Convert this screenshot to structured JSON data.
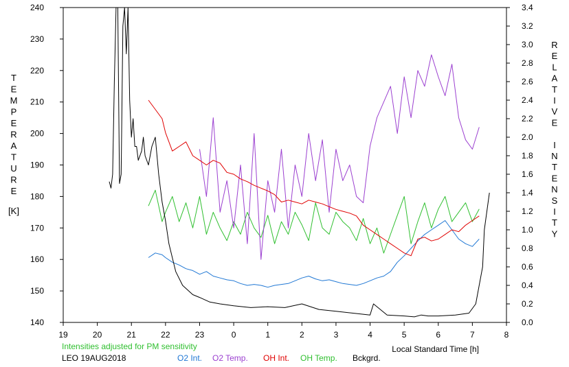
{
  "chart_data": {
    "type": "line",
    "footer_note": "Intensities adjusted for PM sensitivity",
    "station_date": "LEO 19AUG2018",
    "xlabel": "Local Standard Time [h]",
    "x_ticks": [
      "19",
      "20",
      "21",
      "22",
      "23",
      "0",
      "1",
      "2",
      "3",
      "4",
      "5",
      "6",
      "7",
      "8"
    ],
    "ylabel_left": "TEMPERATURE",
    "ylabel_left_unit": "[K]",
    "ylabel_right": "RELATIVE INTENSITY",
    "ylim_left": [
      140,
      240
    ],
    "y_ticks_left": [
      "140",
      "150",
      "160",
      "170",
      "180",
      "190",
      "200",
      "210",
      "220",
      "230",
      "240"
    ],
    "ylim_right": [
      0.0,
      3.4
    ],
    "y_ticks_right": [
      "0.0",
      "0.2",
      "0.4",
      "0.6",
      "0.8",
      "1.0",
      "1.2",
      "1.4",
      "1.6",
      "1.8",
      "2.0",
      "2.2",
      "2.4",
      "2.6",
      "2.8",
      "3.0",
      "3.2",
      "3.4"
    ],
    "colors": {
      "o2_int": "#1f77d4",
      "o2_temp": "#9b3fd0",
      "oh_int": "#e00000",
      "oh_temp": "#2fbf2f",
      "bckgrd": "#000000"
    },
    "series": [
      {
        "key": "bckgrd",
        "name": "Bckgrd.",
        "axis": "right",
        "x": [
          20.35,
          20.4,
          20.45,
          20.5,
          20.55,
          20.6,
          20.65,
          20.7,
          20.75,
          20.8,
          20.85,
          20.9,
          20.95,
          21.0,
          21.05,
          21.1,
          21.15,
          21.2,
          21.3,
          21.35,
          21.4,
          21.5,
          21.6,
          21.7,
          21.8,
          21.9,
          22.0,
          22.1,
          22.3,
          22.5,
          22.8,
          23.0,
          23.3,
          23.6,
          24.0,
          24.5,
          25.0,
          25.5,
          26.0,
          26.5,
          27.0,
          27.5,
          28.0,
          28.1,
          28.5,
          29.0,
          29.3,
          29.5,
          29.7,
          30.0,
          30.5,
          30.9,
          31.1,
          31.3,
          31.35,
          31.5
        ],
        "y": [
          1.52,
          1.45,
          1.6,
          2.6,
          3.5,
          4.0,
          1.5,
          1.6,
          3.2,
          3.6,
          2.9,
          3.5,
          2.4,
          2.0,
          2.2,
          1.9,
          1.9,
          1.75,
          1.85,
          2.0,
          1.8,
          1.7,
          1.9,
          2.0,
          1.6,
          1.3,
          1.1,
          0.85,
          0.55,
          0.4,
          0.3,
          0.27,
          0.22,
          0.2,
          0.18,
          0.16,
          0.17,
          0.16,
          0.2,
          0.14,
          0.12,
          0.1,
          0.08,
          0.2,
          0.08,
          0.07,
          0.06,
          0.08,
          0.07,
          0.07,
          0.08,
          0.1,
          0.2,
          0.6,
          1.0,
          1.4
        ]
      },
      {
        "key": "oh_int",
        "name": "OH Int.",
        "axis": "right",
        "x": [
          21.5,
          21.7,
          21.9,
          22.0,
          22.2,
          22.4,
          22.6,
          22.8,
          23.0,
          23.2,
          23.4,
          23.6,
          23.8,
          24.0,
          24.2,
          24.4,
          24.6,
          24.8,
          25.0,
          25.2,
          25.4,
          25.6,
          25.8,
          26.0,
          26.2,
          26.4,
          26.6,
          26.8,
          27.0,
          27.2,
          27.4,
          27.6,
          27.8,
          28.0,
          28.2,
          28.4,
          28.6,
          28.8,
          29.0,
          29.2,
          29.4,
          29.6,
          29.8,
          30.0,
          30.2,
          30.4,
          30.6,
          30.8,
          31.0,
          31.2
        ],
        "y": [
          2.4,
          2.3,
          2.2,
          2.05,
          1.85,
          1.9,
          1.95,
          1.8,
          1.75,
          1.7,
          1.75,
          1.72,
          1.62,
          1.6,
          1.55,
          1.52,
          1.48,
          1.45,
          1.42,
          1.38,
          1.3,
          1.32,
          1.3,
          1.28,
          1.32,
          1.3,
          1.28,
          1.25,
          1.22,
          1.2,
          1.18,
          1.15,
          1.05,
          1.0,
          0.95,
          0.9,
          0.85,
          0.8,
          0.75,
          0.72,
          0.9,
          0.92,
          0.88,
          0.9,
          0.95,
          1.0,
          0.98,
          1.05,
          1.1,
          1.15
        ]
      },
      {
        "key": "o2_int",
        "name": "O2 Int.",
        "axis": "right",
        "x": [
          21.5,
          21.7,
          21.9,
          22.0,
          22.2,
          22.4,
          22.6,
          22.8,
          23.0,
          23.2,
          23.4,
          23.6,
          23.8,
          24.0,
          24.2,
          24.4,
          24.6,
          24.8,
          25.0,
          25.2,
          25.4,
          25.6,
          25.8,
          26.0,
          26.2,
          26.4,
          26.6,
          26.8,
          27.0,
          27.2,
          27.4,
          27.6,
          27.8,
          28.0,
          28.2,
          28.4,
          28.6,
          28.8,
          29.0,
          29.2,
          29.4,
          29.6,
          29.8,
          30.0,
          30.2,
          30.4,
          30.6,
          30.8,
          31.0,
          31.2
        ],
        "y": [
          0.7,
          0.75,
          0.73,
          0.7,
          0.65,
          0.62,
          0.58,
          0.56,
          0.52,
          0.55,
          0.5,
          0.48,
          0.46,
          0.45,
          0.42,
          0.4,
          0.41,
          0.4,
          0.38,
          0.4,
          0.41,
          0.42,
          0.45,
          0.48,
          0.5,
          0.47,
          0.45,
          0.46,
          0.44,
          0.42,
          0.41,
          0.4,
          0.42,
          0.45,
          0.48,
          0.5,
          0.55,
          0.65,
          0.72,
          0.8,
          0.88,
          0.95,
          1.0,
          1.05,
          1.1,
          1.0,
          0.9,
          0.85,
          0.82,
          0.9
        ]
      },
      {
        "key": "oh_temp",
        "name": "OH Temp.",
        "axis": "left",
        "x": [
          21.5,
          21.7,
          21.9,
          22.0,
          22.2,
          22.4,
          22.6,
          22.8,
          23.0,
          23.2,
          23.4,
          23.6,
          23.8,
          24.0,
          24.2,
          24.4,
          24.6,
          24.8,
          25.0,
          25.2,
          25.4,
          25.6,
          25.8,
          26.0,
          26.2,
          26.4,
          26.6,
          26.8,
          27.0,
          27.2,
          27.4,
          27.6,
          27.8,
          28.0,
          28.2,
          28.4,
          28.6,
          28.8,
          29.0,
          29.2,
          29.4,
          29.6,
          29.8,
          30.0,
          30.2,
          30.4,
          30.6,
          30.8,
          31.0,
          31.2
        ],
        "y": [
          177,
          182,
          172,
          175,
          180,
          172,
          178,
          170,
          180,
          168,
          175,
          170,
          166,
          172,
          168,
          175,
          170,
          167,
          174,
          165,
          172,
          168,
          175,
          171,
          166,
          178,
          170,
          168,
          175,
          172,
          170,
          166,
          173,
          165,
          170,
          162,
          168,
          174,
          180,
          165,
          172,
          178,
          170,
          176,
          180,
          172,
          175,
          178,
          172,
          176
        ]
      },
      {
        "key": "o2_temp",
        "name": "O2 Temp.",
        "axis": "left",
        "x": [
          23.0,
          23.2,
          23.4,
          23.6,
          23.8,
          24.0,
          24.2,
          24.4,
          24.6,
          24.8,
          25.0,
          25.2,
          25.4,
          25.6,
          25.8,
          26.0,
          26.2,
          26.4,
          26.6,
          26.8,
          27.0,
          27.2,
          27.4,
          27.6,
          27.8,
          28.0,
          28.2,
          28.4,
          28.6,
          28.8,
          29.0,
          29.2,
          29.4,
          29.6,
          29.8,
          30.0,
          30.2,
          30.4,
          30.6,
          30.8,
          31.0,
          31.2
        ],
        "y": [
          195,
          180,
          205,
          175,
          185,
          170,
          190,
          165,
          200,
          160,
          185,
          175,
          195,
          170,
          190,
          180,
          200,
          185,
          198,
          175,
          195,
          185,
          190,
          180,
          178,
          196,
          205,
          210,
          215,
          200,
          218,
          205,
          220,
          215,
          225,
          218,
          212,
          222,
          205,
          198,
          195,
          202
        ]
      }
    ]
  }
}
